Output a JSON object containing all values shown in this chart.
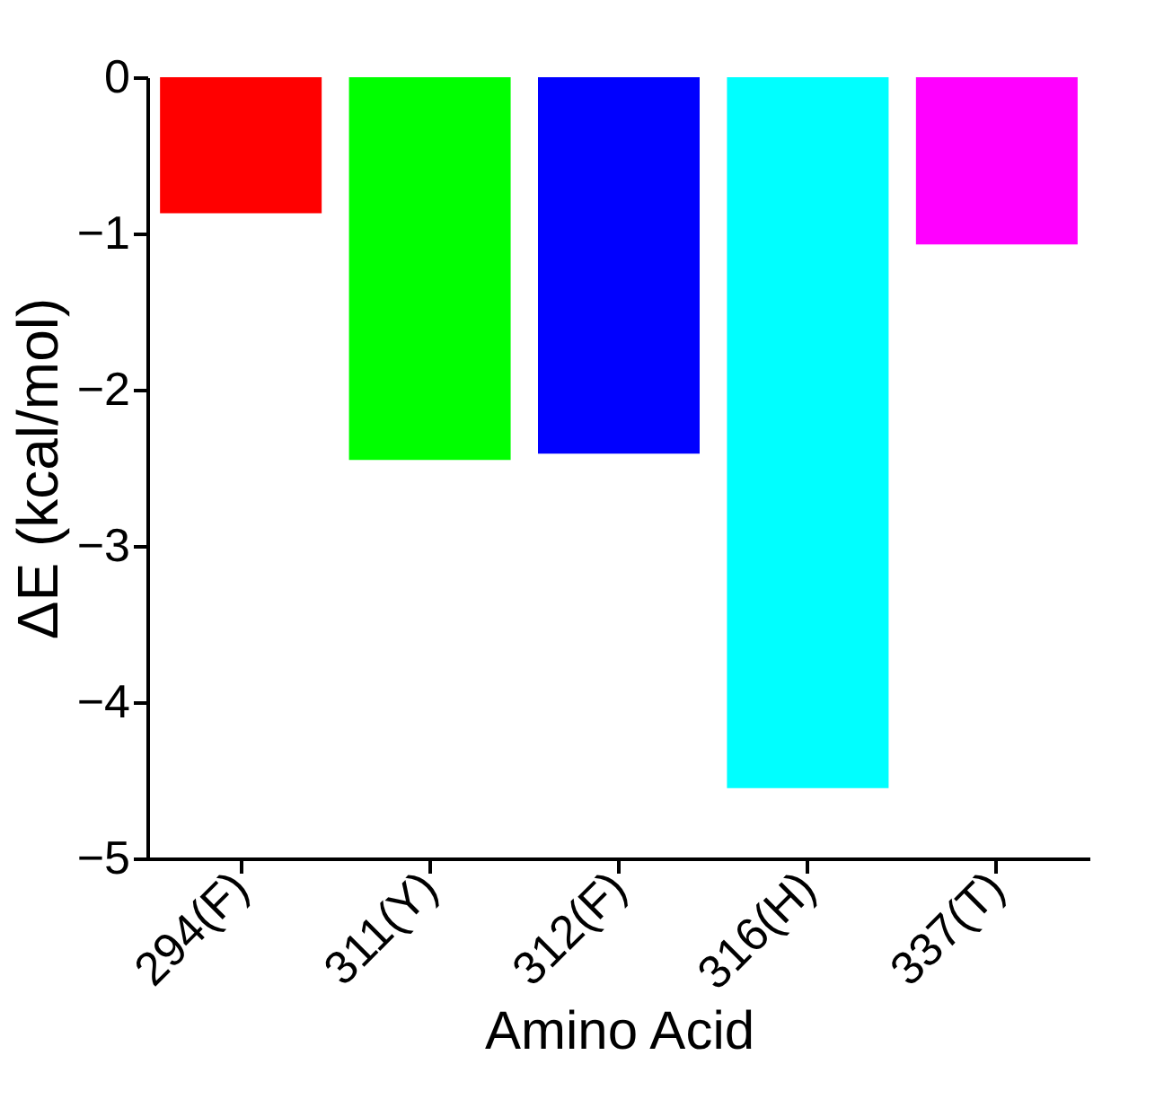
{
  "chart_data": {
    "type": "bar",
    "xlabel": "Amino Acid",
    "ylabel": "ΔE (kcal/mol)",
    "categories": [
      "294(F)",
      "311(Y)",
      "312(F)",
      "316(H)",
      "337(T)"
    ],
    "values": [
      -0.87,
      -2.45,
      -2.41,
      -4.55,
      -1.07
    ],
    "colors": [
      "#ff0000",
      "#00ff00",
      "#0000ff",
      "#00ffff",
      "#ff00ff"
    ],
    "ylim": [
      -5,
      0
    ],
    "yticks": [
      0,
      -1,
      -2,
      -3,
      -4,
      -5
    ],
    "grid": false
  }
}
